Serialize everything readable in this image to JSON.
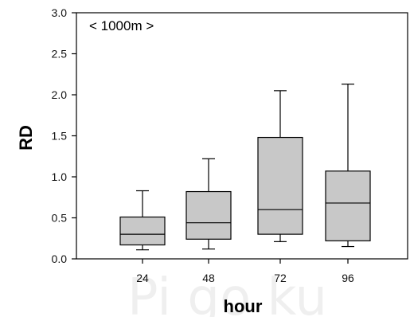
{
  "chart_data": {
    "type": "box",
    "annotation": "< 1000m >",
    "xlabel": "hour",
    "ylabel": "RD",
    "categories": [
      "24",
      "48",
      "72",
      "96"
    ],
    "ylim": [
      0,
      3.0
    ],
    "yticks": [
      "0.0",
      "0.5",
      "1.0",
      "1.5",
      "2.0",
      "2.5",
      "3.0"
    ],
    "grid": false,
    "box_fill": "#c8c8c8",
    "boxes": [
      {
        "label": "24",
        "min": 0.11,
        "q1": 0.17,
        "median": 0.3,
        "q3": 0.51,
        "max": 0.83
      },
      {
        "label": "48",
        "min": 0.12,
        "q1": 0.24,
        "median": 0.44,
        "q3": 0.82,
        "max": 1.22
      },
      {
        "label": "72",
        "min": 0.21,
        "q1": 0.3,
        "median": 0.6,
        "q3": 1.48,
        "max": 2.05
      },
      {
        "label": "96",
        "min": 0.15,
        "q1": 0.22,
        "median": 0.68,
        "q3": 1.07,
        "max": 2.13
      }
    ]
  },
  "watermark": "Pi go ku"
}
